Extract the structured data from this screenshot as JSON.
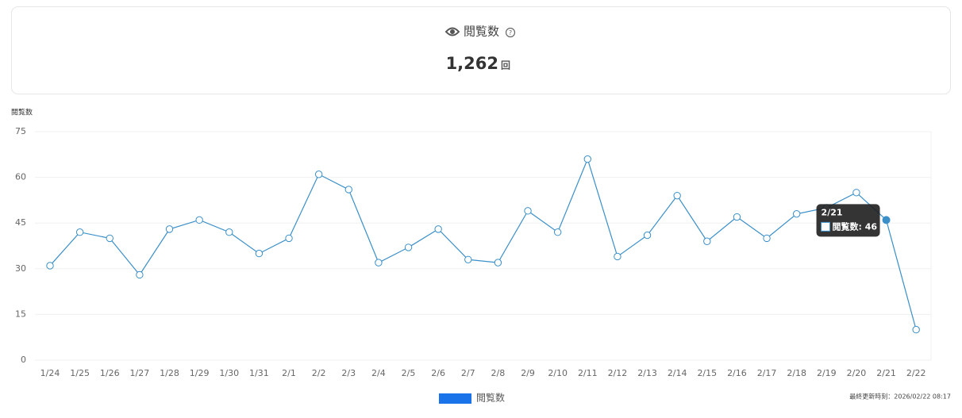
{
  "summary": {
    "title": "閲覧数",
    "value": "1,262",
    "unit": "回"
  },
  "chart_data": {
    "type": "line",
    "y_label": "閲覧数",
    "categories": [
      "1/24",
      "1/25",
      "1/26",
      "1/27",
      "1/28",
      "1/29",
      "1/30",
      "1/31",
      "2/1",
      "2/2",
      "2/3",
      "2/4",
      "2/5",
      "2/6",
      "2/7",
      "2/8",
      "2/9",
      "2/10",
      "2/11",
      "2/12",
      "2/13",
      "2/14",
      "2/15",
      "2/16",
      "2/17",
      "2/18",
      "2/19",
      "2/20",
      "2/21",
      "2/22"
    ],
    "series": [
      {
        "name": "閲覧数",
        "color": "#3a8fc8",
        "values": [
          31,
          42,
          40,
          28,
          43,
          46,
          42,
          35,
          40,
          61,
          56,
          32,
          37,
          43,
          33,
          32,
          49,
          42,
          66,
          34,
          41,
          54,
          39,
          47,
          40,
          48,
          50,
          55,
          46,
          10
        ]
      }
    ],
    "legend_color": "#1a73e8",
    "ylim": [
      0,
      75
    ],
    "yticks": [
      0,
      15,
      30,
      45,
      60,
      75
    ],
    "grid": true,
    "legend": "bottom",
    "tooltip": {
      "index": 28,
      "title": "2/21",
      "text": "閲覧数: 46"
    }
  },
  "footer": {
    "updated": "最終更新時刻：2026/02/22 08:17"
  }
}
